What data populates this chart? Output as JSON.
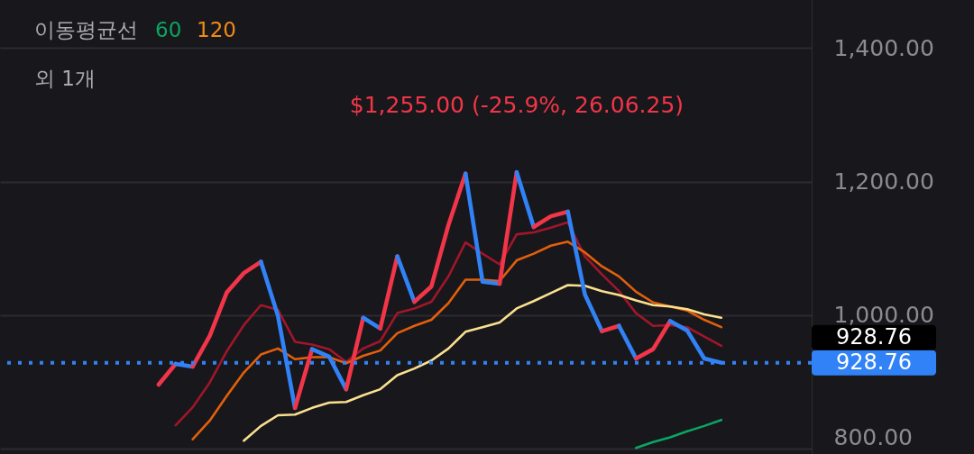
{
  "chart_data": {
    "type": "line",
    "categories": [
      null,
      null,
      null,
      null,
      null,
      null,
      null,
      null,
      null,
      null,
      null,
      null,
      null,
      null,
      null,
      null,
      null,
      null,
      null,
      null,
      null,
      null,
      null,
      null,
      null,
      null,
      null,
      null,
      null,
      null,
      null,
      null,
      null,
      null,
      null,
      null,
      null,
      null,
      null,
      null,
      null,
      null,
      null,
      null,
      null,
      null,
      null,
      null
    ],
    "ylim": [
      792,
      1472
    ],
    "yticks": [
      {
        "value": 800,
        "label": "800.00"
      },
      {
        "value": 1000,
        "label": "1,000.00"
      },
      {
        "value": 1200,
        "label": "1,200.00"
      },
      {
        "value": 1400,
        "label": "1,400.00"
      }
    ],
    "grid": "y",
    "tick_labels": "y",
    "series": [
      {
        "color": "#a0162a",
        "values": [
          null,
          null,
          null,
          null,
          null,
          null,
          null,
          null,
          null,
          null,
          835,
          862,
          899,
          946,
          985,
          1015,
          1008,
          960,
          956,
          949,
          930,
          950,
          961,
          1003,
          1010,
          1020,
          1058,
          1109,
          1092,
          1076,
          1121,
          1124,
          1131,
          1139,
          1088,
          1061,
          1036,
          1003,
          984,
          985,
          982,
          968,
          954,
          null,
          null,
          null,
          null,
          null
        ]
      },
      {
        "color": "#e35f0c",
        "values": [
          null,
          null,
          null,
          null,
          null,
          null,
          null,
          null,
          null,
          null,
          null,
          814,
          842,
          879,
          914,
          941,
          950,
          934,
          937,
          937,
          928,
          939,
          947,
          973,
          984,
          993,
          1018,
          1053,
          1053,
          1051,
          1082,
          1092,
          1104,
          1110,
          1094,
          1073,
          1058,
          1035,
          1019,
          1013,
          1007,
          993,
          982,
          null,
          null,
          null,
          null,
          null
        ]
      },
      {
        "color": "#fbe08f",
        "values": [
          null,
          null,
          null,
          null,
          null,
          null,
          null,
          null,
          null,
          null,
          null,
          null,
          null,
          null,
          812,
          834,
          850,
          851,
          861,
          869,
          870,
          880,
          889,
          910,
          920,
          932,
          950,
          975,
          982,
          989,
          1010,
          1021,
          1033,
          1045,
          1044,
          1036,
          1030,
          1022,
          1015,
          1013,
          1009,
          1001,
          996,
          null,
          null,
          null,
          null,
          null
        ]
      },
      {
        "color": "#0aa562",
        "values": [
          null,
          null,
          null,
          null,
          null,
          null,
          null,
          null,
          null,
          null,
          null,
          null,
          null,
          null,
          null,
          null,
          null,
          null,
          null,
          null,
          null,
          null,
          null,
          null,
          null,
          null,
          null,
          null,
          null,
          null,
          null,
          null,
          null,
          null,
          null,
          null,
          null,
          801,
          810,
          817,
          826,
          834,
          843,
          null,
          null,
          null,
          null,
          null
        ]
      },
      {
        "color": "#f23548",
        "values": [
          null,
          null,
          null,
          null,
          null,
          null,
          null,
          null,
          null,
          896,
          927,
          null,
          null,
          null,
          null,
          null,
          null,
          null,
          null,
          null,
          null,
          null,
          null,
          null,
          null,
          null,
          null,
          null,
          null,
          null,
          null,
          null,
          null,
          null,
          null,
          null,
          null,
          null,
          null,
          null,
          null,
          null,
          null,
          null,
          null,
          null,
          null,
          null
        ]
      },
      {
        "color": "#3182f6",
        "values": [
          null,
          null,
          null,
          null,
          null,
          null,
          null,
          null,
          null,
          null,
          927,
          923,
          null,
          null,
          null,
          null,
          null,
          null,
          null,
          null,
          null,
          null,
          null,
          null,
          null,
          null,
          null,
          null,
          null,
          null,
          null,
          null,
          null,
          null,
          null,
          null,
          null,
          null,
          null,
          null,
          null,
          null,
          null,
          null,
          null,
          null,
          null,
          null
        ]
      },
      {
        "color": "#f23548",
        "values": [
          null,
          null,
          null,
          null,
          null,
          null,
          null,
          null,
          null,
          null,
          null,
          923,
          969,
          1034,
          1063,
          1080,
          null,
          null,
          null,
          null,
          null,
          null,
          null,
          null,
          null,
          null,
          null,
          null,
          null,
          null,
          null,
          null,
          null,
          null,
          null,
          null,
          null,
          null,
          null,
          null,
          null,
          null,
          null,
          null,
          null,
          null,
          null,
          null
        ]
      },
      {
        "color": "#3182f6",
        "values": [
          null,
          null,
          null,
          null,
          null,
          null,
          null,
          null,
          null,
          null,
          null,
          null,
          null,
          null,
          null,
          1080,
          999,
          861,
          null,
          null,
          null,
          null,
          null,
          null,
          null,
          null,
          null,
          null,
          null,
          null,
          null,
          null,
          null,
          null,
          null,
          null,
          null,
          null,
          null,
          null,
          null,
          null,
          null,
          null,
          null,
          null,
          null,
          null
        ]
      },
      {
        "color": "#f23548",
        "values": [
          null,
          null,
          null,
          null,
          null,
          null,
          null,
          null,
          null,
          null,
          null,
          null,
          null,
          null,
          null,
          null,
          null,
          861,
          949,
          null,
          null,
          null,
          null,
          null,
          null,
          null,
          null,
          null,
          null,
          null,
          null,
          null,
          null,
          null,
          null,
          null,
          null,
          null,
          null,
          null,
          null,
          null,
          null,
          null,
          null,
          null,
          null,
          null
        ]
      },
      {
        "color": "#3182f6",
        "values": [
          null,
          null,
          null,
          null,
          null,
          null,
          null,
          null,
          null,
          null,
          null,
          null,
          null,
          null,
          null,
          null,
          null,
          null,
          949,
          938,
          889,
          null,
          null,
          null,
          null,
          null,
          null,
          null,
          null,
          null,
          null,
          null,
          null,
          null,
          null,
          null,
          null,
          null,
          null,
          null,
          null,
          null,
          null,
          null,
          null,
          null,
          null,
          null
        ]
      },
      {
        "color": "#f23548",
        "values": [
          null,
          null,
          null,
          null,
          null,
          null,
          null,
          null,
          null,
          null,
          null,
          null,
          null,
          null,
          null,
          null,
          null,
          null,
          null,
          null,
          889,
          996,
          null,
          null,
          null,
          null,
          null,
          null,
          null,
          null,
          null,
          null,
          null,
          null,
          null,
          null,
          null,
          null,
          null,
          null,
          null,
          null,
          null,
          null,
          null,
          null,
          null,
          null
        ]
      },
      {
        "color": "#3182f6",
        "values": [
          null,
          null,
          null,
          null,
          null,
          null,
          null,
          null,
          null,
          null,
          null,
          null,
          null,
          null,
          null,
          null,
          null,
          null,
          null,
          null,
          null,
          996,
          980,
          null,
          null,
          null,
          null,
          null,
          null,
          null,
          null,
          null,
          null,
          null,
          null,
          null,
          null,
          null,
          null,
          null,
          null,
          null,
          null,
          null,
          null,
          null,
          null,
          null
        ]
      },
      {
        "color": "#f23548",
        "values": [
          null,
          null,
          null,
          null,
          null,
          null,
          null,
          null,
          null,
          null,
          null,
          null,
          null,
          null,
          null,
          null,
          null,
          null,
          null,
          null,
          null,
          null,
          980,
          1088,
          null,
          null,
          null,
          null,
          null,
          null,
          null,
          null,
          null,
          null,
          null,
          null,
          null,
          null,
          null,
          null,
          null,
          null,
          null,
          null,
          null,
          null,
          null,
          null
        ]
      },
      {
        "color": "#3182f6",
        "values": [
          null,
          null,
          null,
          null,
          null,
          null,
          null,
          null,
          null,
          null,
          null,
          null,
          null,
          null,
          null,
          null,
          null,
          null,
          null,
          null,
          null,
          null,
          null,
          1088,
          1020,
          null,
          null,
          null,
          null,
          null,
          null,
          null,
          null,
          null,
          null,
          null,
          null,
          null,
          null,
          null,
          null,
          null,
          null,
          null,
          null,
          null,
          null,
          null
        ]
      },
      {
        "color": "#f23548",
        "values": [
          null,
          null,
          null,
          null,
          null,
          null,
          null,
          null,
          null,
          null,
          null,
          null,
          null,
          null,
          null,
          null,
          null,
          null,
          null,
          null,
          null,
          null,
          null,
          null,
          1020,
          1043,
          1135,
          1212,
          null,
          null,
          null,
          null,
          null,
          null,
          null,
          null,
          null,
          null,
          null,
          null,
          null,
          null,
          null,
          null,
          null,
          null,
          null,
          null
        ]
      },
      {
        "color": "#3182f6",
        "values": [
          null,
          null,
          null,
          null,
          null,
          null,
          null,
          null,
          null,
          null,
          null,
          null,
          null,
          null,
          null,
          null,
          null,
          null,
          null,
          null,
          null,
          null,
          null,
          null,
          null,
          null,
          null,
          1212,
          1050,
          1047,
          null,
          null,
          null,
          null,
          null,
          null,
          null,
          null,
          null,
          null,
          null,
          null,
          null,
          null,
          null,
          null,
          null,
          null
        ]
      },
      {
        "color": "#f23548",
        "values": [
          null,
          null,
          null,
          null,
          null,
          null,
          null,
          null,
          null,
          null,
          null,
          null,
          null,
          null,
          null,
          null,
          null,
          null,
          null,
          null,
          null,
          null,
          null,
          null,
          null,
          null,
          null,
          null,
          null,
          1047,
          1214,
          null,
          null,
          null,
          null,
          null,
          null,
          null,
          null,
          null,
          null,
          null,
          null,
          null,
          null,
          null,
          null,
          null
        ]
      },
      {
        "color": "#3182f6",
        "values": [
          null,
          null,
          null,
          null,
          null,
          null,
          null,
          null,
          null,
          null,
          null,
          null,
          null,
          null,
          null,
          null,
          null,
          null,
          null,
          null,
          null,
          null,
          null,
          null,
          null,
          null,
          null,
          null,
          null,
          null,
          1214,
          1132,
          null,
          null,
          null,
          null,
          null,
          null,
          null,
          null,
          null,
          null,
          null,
          null,
          null,
          null,
          null,
          null
        ]
      },
      {
        "color": "#f23548",
        "values": [
          null,
          null,
          null,
          null,
          null,
          null,
          null,
          null,
          null,
          null,
          null,
          null,
          null,
          null,
          null,
          null,
          null,
          null,
          null,
          null,
          null,
          null,
          null,
          null,
          null,
          null,
          null,
          null,
          null,
          null,
          null,
          1132,
          1148,
          1155,
          null,
          null,
          null,
          null,
          null,
          null,
          null,
          null,
          null,
          null,
          null,
          null,
          null,
          null
        ]
      },
      {
        "color": "#3182f6",
        "values": [
          null,
          null,
          null,
          null,
          null,
          null,
          null,
          null,
          null,
          null,
          null,
          null,
          null,
          null,
          null,
          null,
          null,
          null,
          null,
          null,
          null,
          null,
          null,
          null,
          null,
          null,
          null,
          null,
          null,
          null,
          null,
          null,
          null,
          1155,
          1031,
          976,
          null,
          null,
          null,
          null,
          null,
          null,
          null,
          null,
          null,
          null,
          null,
          null
        ]
      },
      {
        "color": "#f23548",
        "values": [
          null,
          null,
          null,
          null,
          null,
          null,
          null,
          null,
          null,
          null,
          null,
          null,
          null,
          null,
          null,
          null,
          null,
          null,
          null,
          null,
          null,
          null,
          null,
          null,
          null,
          null,
          null,
          null,
          null,
          null,
          null,
          null,
          null,
          null,
          null,
          976,
          984,
          null,
          null,
          null,
          null,
          null,
          null,
          null,
          null,
          null,
          null,
          null
        ]
      },
      {
        "color": "#3182f6",
        "values": [
          null,
          null,
          null,
          null,
          null,
          null,
          null,
          null,
          null,
          null,
          null,
          null,
          null,
          null,
          null,
          null,
          null,
          null,
          null,
          null,
          null,
          null,
          null,
          null,
          null,
          null,
          null,
          null,
          null,
          null,
          null,
          null,
          null,
          null,
          null,
          null,
          984,
          935,
          null,
          null,
          null,
          null,
          null,
          null,
          null,
          null,
          null,
          null
        ]
      },
      {
        "color": "#f23548",
        "values": [
          null,
          null,
          null,
          null,
          null,
          null,
          null,
          null,
          null,
          null,
          null,
          null,
          null,
          null,
          null,
          null,
          null,
          null,
          null,
          null,
          null,
          null,
          null,
          null,
          null,
          null,
          null,
          null,
          null,
          null,
          null,
          null,
          null,
          null,
          null,
          null,
          null,
          935,
          949,
          991,
          null,
          null,
          null,
          null,
          null,
          null,
          null,
          null
        ]
      },
      {
        "color": "#3182f6",
        "values": [
          null,
          null,
          null,
          null,
          null,
          null,
          null,
          null,
          null,
          null,
          null,
          null,
          null,
          null,
          null,
          null,
          null,
          null,
          null,
          null,
          null,
          null,
          null,
          null,
          null,
          null,
          null,
          null,
          null,
          null,
          null,
          null,
          null,
          null,
          null,
          null,
          null,
          null,
          null,
          991,
          977,
          935,
          928.76,
          null,
          null,
          null,
          null,
          null
        ]
      }
    ],
    "ref_lines": [
      {
        "axis": "y",
        "value": 928.76,
        "label": "928.76",
        "color": "#3182f6",
        "line_style": "dotted"
      }
    ],
    "annotations": [
      "이동평균선",
      "60",
      "120",
      "외 1개",
      "$1,255.00 (-25.9%, 26.06.25)",
      "928.76"
    ]
  }
}
